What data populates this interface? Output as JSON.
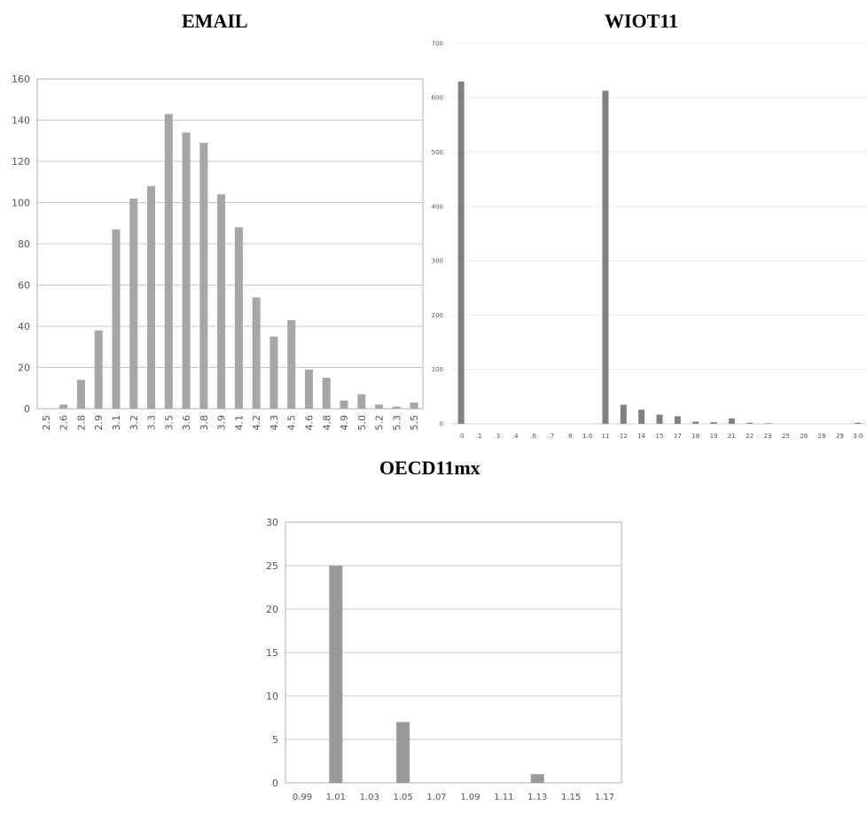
{
  "chart_data": [
    {
      "type": "bar",
      "title": "EMAIL",
      "categories": [
        "2.5",
        "2.6",
        "2.8",
        "2.9",
        "3.1",
        "3.2",
        "3.3",
        "3.5",
        "3.6",
        "3.8",
        "3.9",
        "4.1",
        "4.2",
        "4.3",
        "4.5",
        "4.6",
        "4.8",
        "4.9",
        "5.0",
        "5.2",
        "5.3",
        "5.5"
      ],
      "values": [
        0,
        2,
        14,
        38,
        87,
        102,
        108,
        143,
        134,
        129,
        104,
        88,
        54,
        35,
        43,
        19,
        15,
        4,
        7,
        2,
        1,
        3
      ],
      "yticks": [
        "0",
        "20",
        "40",
        "60",
        "80",
        "100",
        "120",
        "140",
        "160"
      ],
      "ylim": [
        0,
        160
      ],
      "grid": true,
      "color": "#a6a6a6"
    },
    {
      "type": "bar",
      "title": "WIOT11",
      "categories": [
        ".0",
        ".1",
        ".3",
        ".4",
        ".6",
        ".7",
        ".8",
        "1.0",
        "11",
        "12",
        "14",
        "15",
        "17",
        "18",
        "19",
        "21",
        "22",
        "23",
        "25",
        "26",
        "28",
        "29",
        "3.0"
      ],
      "values": [
        630,
        0,
        0,
        0,
        0,
        0,
        0,
        0,
        613,
        35,
        26,
        17,
        14,
        4,
        3,
        10,
        2,
        1,
        0,
        0,
        0,
        0,
        2
      ],
      "yticks": [
        "0",
        "100",
        "200",
        "300",
        "400",
        "500",
        "600",
        "700"
      ],
      "ylim": [
        0,
        700
      ],
      "grid": true,
      "color": "#808080"
    },
    {
      "type": "bar",
      "title": "OECD11mx",
      "categories": [
        "0.99",
        "1.01",
        "1.03",
        "1.05",
        "1.07",
        "1.09",
        "1.11",
        "1.13",
        "1.15",
        "1.17"
      ],
      "values": [
        0,
        25,
        0,
        7,
        0,
        0,
        0,
        1,
        0,
        0
      ],
      "yticks": [
        "0",
        "5",
        "10",
        "15",
        "20",
        "25",
        "30"
      ],
      "ylim": [
        0,
        30
      ],
      "grid": true,
      "color": "#999999"
    }
  ]
}
